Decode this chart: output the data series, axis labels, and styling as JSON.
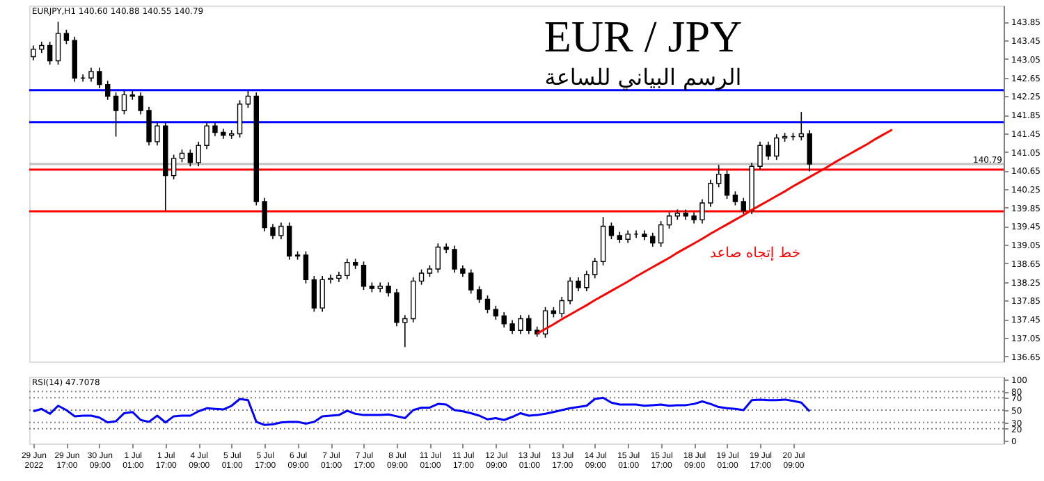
{
  "chart_data": [
    {
      "type": "candlestick",
      "title": "EUR / JPY",
      "subtitle": "الرسم البياني للساعة",
      "annotations": [
        "EURJPY,H1 140.60 140.88 140.55 140.79",
        "خط إتجاه صاعد"
      ],
      "categories": [
        null,
        null,
        null,
        null,
        null,
        null,
        null,
        null,
        null,
        null,
        null,
        null,
        null,
        null,
        null,
        null,
        null,
        null,
        null,
        null,
        null,
        null,
        null,
        null,
        null,
        null,
        null,
        null,
        null,
        null,
        null,
        null,
        null,
        null,
        null,
        null,
        null,
        null,
        null,
        null,
        null,
        null,
        null,
        null,
        null,
        null,
        null,
        null,
        null,
        null,
        null,
        null,
        null,
        null,
        null,
        null,
        null,
        null,
        null,
        null,
        null,
        null,
        null,
        null,
        null,
        null,
        null,
        null,
        null,
        null,
        null,
        null,
        null,
        null,
        null,
        null,
        null,
        null,
        null,
        null,
        null,
        null,
        null,
        null,
        null,
        null,
        null,
        null,
        null,
        null,
        null,
        null,
        null,
        null,
        null,
        null,
        null,
        null,
        null,
        null,
        null,
        null,
        null,
        null,
        null,
        null,
        null,
        null,
        null,
        null,
        null,
        null,
        null,
        null,
        null,
        null,
        null,
        null
      ],
      "ohlc": [
        [
          143.1,
          143.34,
          143.02,
          143.26
        ],
        [
          143.26,
          143.42,
          143.18,
          143.34
        ],
        [
          143.34,
          143.42,
          142.93,
          143.01
        ],
        [
          143.01,
          143.85,
          142.93,
          143.6
        ],
        [
          143.6,
          143.68,
          143.37,
          143.45
        ],
        [
          143.45,
          143.53,
          142.56,
          142.64
        ],
        [
          142.64,
          142.72,
          142.56,
          142.64
        ],
        [
          142.64,
          142.86,
          142.56,
          142.78
        ],
        [
          142.78,
          142.86,
          142.42,
          142.5
        ],
        [
          142.5,
          142.58,
          142.17,
          142.25
        ],
        [
          142.25,
          142.33,
          141.38,
          141.94
        ],
        [
          141.94,
          142.36,
          141.86,
          142.28
        ],
        [
          142.28,
          142.36,
          142.17,
          142.25
        ],
        [
          142.25,
          142.33,
          141.86,
          141.94
        ],
        [
          141.94,
          142.02,
          141.19,
          141.27
        ],
        [
          141.27,
          141.69,
          141.19,
          141.61
        ],
        [
          141.61,
          141.69,
          139.79,
          140.54
        ],
        [
          140.54,
          140.99,
          140.46,
          140.91
        ],
        [
          140.91,
          141.1,
          140.83,
          141.02
        ],
        [
          141.02,
          141.1,
          140.74,
          140.82
        ],
        [
          140.82,
          141.27,
          140.74,
          141.19
        ],
        [
          141.19,
          141.69,
          141.11,
          141.61
        ],
        [
          141.61,
          141.69,
          141.39,
          141.47
        ],
        [
          141.47,
          141.55,
          141.33,
          141.41
        ],
        [
          141.41,
          141.52,
          141.33,
          141.44
        ],
        [
          141.44,
          142.16,
          141.36,
          142.08
        ],
        [
          142.08,
          142.36,
          142.0,
          142.25
        ],
        [
          142.25,
          142.33,
          139.9,
          139.98
        ],
        [
          139.98,
          140.06,
          139.34,
          139.42
        ],
        [
          139.42,
          139.5,
          139.17,
          139.25
        ],
        [
          139.25,
          139.53,
          139.17,
          139.45
        ],
        [
          139.45,
          139.53,
          138.73,
          138.81
        ],
        [
          138.81,
          138.91,
          138.73,
          138.83
        ],
        [
          138.83,
          138.91,
          138.22,
          138.3
        ],
        [
          138.3,
          138.38,
          137.61,
          137.69
        ],
        [
          137.69,
          138.38,
          137.61,
          138.3
        ],
        [
          138.3,
          138.41,
          138.22,
          138.33
        ],
        [
          138.33,
          138.47,
          138.25,
          138.39
        ],
        [
          138.39,
          138.75,
          138.31,
          138.67
        ],
        [
          138.67,
          138.75,
          138.53,
          138.61
        ],
        [
          138.61,
          138.69,
          138.08,
          138.16
        ],
        [
          138.16,
          138.24,
          138.03,
          138.11
        ],
        [
          138.11,
          138.24,
          138.03,
          138.16
        ],
        [
          138.16,
          138.24,
          137.94,
          138.02
        ],
        [
          138.02,
          138.1,
          137.3,
          137.38
        ],
        [
          137.38,
          137.54,
          136.85,
          137.46
        ],
        [
          137.46,
          138.35,
          137.38,
          138.27
        ],
        [
          138.27,
          138.52,
          138.19,
          138.44
        ],
        [
          138.44,
          138.61,
          138.36,
          138.53
        ],
        [
          138.53,
          139.08,
          138.45,
          139.0
        ],
        [
          139.0,
          139.08,
          138.87,
          138.95
        ],
        [
          138.95,
          139.03,
          138.45,
          138.53
        ],
        [
          138.53,
          138.61,
          138.36,
          138.44
        ],
        [
          138.44,
          138.52,
          138.0,
          138.08
        ],
        [
          138.08,
          138.16,
          137.8,
          137.88
        ],
        [
          137.88,
          137.96,
          137.58,
          137.66
        ],
        [
          137.66,
          137.74,
          137.44,
          137.52
        ],
        [
          137.52,
          137.6,
          137.27,
          137.35
        ],
        [
          137.35,
          137.43,
          137.13,
          137.21
        ],
        [
          137.21,
          137.54,
          137.13,
          137.46
        ],
        [
          137.46,
          137.54,
          137.13,
          137.21
        ],
        [
          137.21,
          137.29,
          137.07,
          137.13
        ],
        [
          137.13,
          137.71,
          137.05,
          137.63
        ],
        [
          137.63,
          137.71,
          137.49,
          137.57
        ],
        [
          137.57,
          137.93,
          137.49,
          137.85
        ],
        [
          137.85,
          138.35,
          137.77,
          138.27
        ],
        [
          138.27,
          138.35,
          138.05,
          138.13
        ],
        [
          138.13,
          138.49,
          138.05,
          138.41
        ],
        [
          138.41,
          138.77,
          138.33,
          138.69
        ],
        [
          138.69,
          139.65,
          138.61,
          139.45
        ],
        [
          139.45,
          139.53,
          139.17,
          139.25
        ],
        [
          139.25,
          139.33,
          139.09,
          139.17
        ],
        [
          139.17,
          139.36,
          139.09,
          139.28
        ],
        [
          139.28,
          139.36,
          139.2,
          139.28
        ],
        [
          139.28,
          139.36,
          139.15,
          139.23
        ],
        [
          139.23,
          139.31,
          139.01,
          139.09
        ],
        [
          139.09,
          139.56,
          139.01,
          139.48
        ],
        [
          139.48,
          139.75,
          139.4,
          139.67
        ],
        [
          139.67,
          139.81,
          139.59,
          139.73
        ],
        [
          139.73,
          139.81,
          139.59,
          139.67
        ],
        [
          139.67,
          139.75,
          139.51,
          139.59
        ],
        [
          139.59,
          140.03,
          139.51,
          139.95
        ],
        [
          139.95,
          140.45,
          139.87,
          140.37
        ],
        [
          140.37,
          140.77,
          140.29,
          140.57
        ],
        [
          140.57,
          140.65,
          140.04,
          140.12
        ],
        [
          140.12,
          140.2,
          139.9,
          139.98
        ],
        [
          139.98,
          140.06,
          139.71,
          139.79
        ],
        [
          139.79,
          140.82,
          139.71,
          140.74
        ],
        [
          140.74,
          141.27,
          140.66,
          141.19
        ],
        [
          141.19,
          141.27,
          140.88,
          140.96
        ],
        [
          140.96,
          141.43,
          140.88,
          141.35
        ],
        [
          141.35,
          141.46,
          141.27,
          141.38
        ],
        [
          141.38,
          141.46,
          141.3,
          141.38
        ],
        [
          141.38,
          141.91,
          141.3,
          141.44
        ],
        [
          141.44,
          141.52,
          140.63,
          140.79
        ],
        null,
        null,
        null,
        null,
        null,
        null,
        null,
        null,
        null,
        null,
        null,
        null,
        null,
        null,
        null,
        null,
        null,
        null,
        null,
        null,
        null,
        null,
        null
      ],
      "color": "#000000",
      "series": [
        {
          "type": "line",
          "color": "#ff0000",
          "values": [
            null,
            null,
            null,
            null,
            null,
            null,
            null,
            null,
            null,
            null,
            null,
            null,
            null,
            null,
            null,
            null,
            null,
            null,
            null,
            null,
            null,
            null,
            null,
            null,
            null,
            null,
            null,
            null,
            null,
            null,
            null,
            null,
            null,
            null,
            null,
            null,
            null,
            null,
            null,
            null,
            null,
            null,
            null,
            null,
            null,
            null,
            null,
            null,
            null,
            null,
            null,
            null,
            null,
            null,
            null,
            null,
            null,
            null,
            null,
            null,
            null,
            137.14,
            137.24,
            137.34,
            137.45,
            137.55,
            137.65,
            137.75,
            137.86,
            137.96,
            138.06,
            138.16,
            138.26,
            138.37,
            138.47,
            138.57,
            138.67,
            138.77,
            138.88,
            138.98,
            139.08,
            139.18,
            139.29,
            139.39,
            139.49,
            139.59,
            139.69,
            139.8,
            139.9,
            140.0,
            140.1,
            140.2,
            140.31,
            140.41,
            140.51,
            140.61,
            140.71,
            140.82,
            140.92,
            141.02,
            141.12,
            141.22,
            141.33,
            141.43,
            141.53,
            null,
            null,
            null,
            null,
            null,
            null,
            null,
            null,
            null,
            null,
            null,
            null,
            null
          ]
        }
      ],
      "ref_lines": [
        {
          "axis": "y",
          "value": 142.38,
          "color": "#0000ff"
        },
        {
          "axis": "y",
          "value": 141.69,
          "color": "#0000ff"
        },
        {
          "axis": "y",
          "value": 140.79,
          "color": "#c0c0c0",
          "label": "140.79"
        },
        {
          "axis": "y",
          "value": 140.67,
          "color": "#ff0000"
        },
        {
          "axis": "y",
          "value": 139.77,
          "color": "#ff0000"
        }
      ],
      "ylim": [
        136.54,
        144.2
      ],
      "yticks": [
        136.65,
        137.05,
        137.45,
        137.85,
        138.25,
        138.65,
        139.05,
        139.45,
        139.85,
        140.25,
        140.65,
        141.05,
        141.45,
        141.85,
        142.25,
        142.65,
        143.05,
        143.45,
        143.85
      ],
      "tick_labels": "y"
    },
    {
      "type": "line",
      "title": "RSI(14) 47.7078",
      "categories": [
        "29 Jun 2022",
        null,
        null,
        null,
        "29 Jun 17:00",
        null,
        null,
        null,
        "30 Jun 09:00",
        null,
        null,
        null,
        "1 Jul 01:00",
        null,
        null,
        null,
        "1 Jul 17:00",
        null,
        null,
        null,
        "4 Jul 09:00",
        null,
        null,
        null,
        "5 Jul 01:00",
        null,
        null,
        null,
        "5 Jul 17:00",
        null,
        null,
        null,
        "6 Jul 09:00",
        null,
        null,
        null,
        "7 Jul 01:00",
        null,
        null,
        null,
        "7 Jul 17:00",
        null,
        null,
        null,
        "8 Jul 09:00",
        null,
        null,
        null,
        "11 Jul 01:00",
        null,
        null,
        null,
        "11 Jul 17:00",
        null,
        null,
        null,
        "12 Jul 09:00",
        null,
        null,
        null,
        "13 Jul 01:00",
        null,
        null,
        null,
        "13 Jul 17:00",
        null,
        null,
        null,
        "14 Jul 09:00",
        null,
        null,
        null,
        "15 Jul 01:00",
        null,
        null,
        null,
        "15 Jul 17:00",
        null,
        null,
        null,
        "18 Jul 09:00",
        null,
        null,
        null,
        "19 Jul 01:00",
        null,
        null,
        null,
        "19 Jul 17:00",
        null,
        null,
        null,
        "20 Jul 09:00",
        null,
        null,
        null,
        null,
        null,
        null,
        null,
        null,
        null,
        null,
        null,
        null,
        null,
        null,
        null,
        null,
        null,
        null,
        null,
        null,
        null,
        null,
        null,
        null,
        null
      ],
      "series": [
        {
          "color": "#0000ff",
          "values": [
            48,
            52,
            44,
            57,
            50,
            40,
            41,
            41,
            38,
            30,
            32,
            45,
            47,
            34,
            31,
            41,
            30,
            40,
            41,
            41,
            48,
            53,
            52,
            51,
            57,
            68,
            66,
            31,
            26,
            27,
            30,
            31,
            31,
            28,
            31,
            40,
            41,
            42,
            49,
            44,
            42,
            42,
            42,
            43,
            40,
            37,
            50,
            54,
            54,
            60,
            59,
            50,
            48,
            45,
            41,
            35,
            37,
            34,
            39,
            45,
            41,
            42,
            44,
            47,
            50,
            53,
            55,
            57,
            68,
            70,
            62,
            59,
            59,
            59,
            57,
            58,
            59,
            57,
            58,
            58,
            60,
            64,
            60,
            55,
            53,
            52,
            50,
            66,
            67,
            66,
            66,
            67,
            65,
            62,
            48,
            null,
            null,
            null,
            null,
            null,
            null,
            null,
            null,
            null,
            null,
            null,
            null,
            null,
            null,
            null,
            null,
            null,
            null,
            null,
            null,
            null,
            null,
            null
          ]
        }
      ],
      "ref_lines": [
        {
          "axis": "y",
          "value": 80,
          "color": "#808080",
          "line_style": "dotted"
        },
        {
          "axis": "y",
          "value": 70,
          "color": "#808080",
          "line_style": "dotted"
        },
        {
          "axis": "y",
          "value": 50,
          "color": "#808080",
          "line_style": "dotted"
        },
        {
          "axis": "y",
          "value": 30,
          "color": "#808080",
          "line_style": "dotted"
        },
        {
          "axis": "y",
          "value": 20,
          "color": "#808080",
          "line_style": "dotted"
        }
      ],
      "ylim": [
        -4,
        104
      ],
      "yticks": [
        0,
        20,
        30,
        50,
        70,
        80,
        100
      ],
      "line_style": "solid"
    }
  ]
}
